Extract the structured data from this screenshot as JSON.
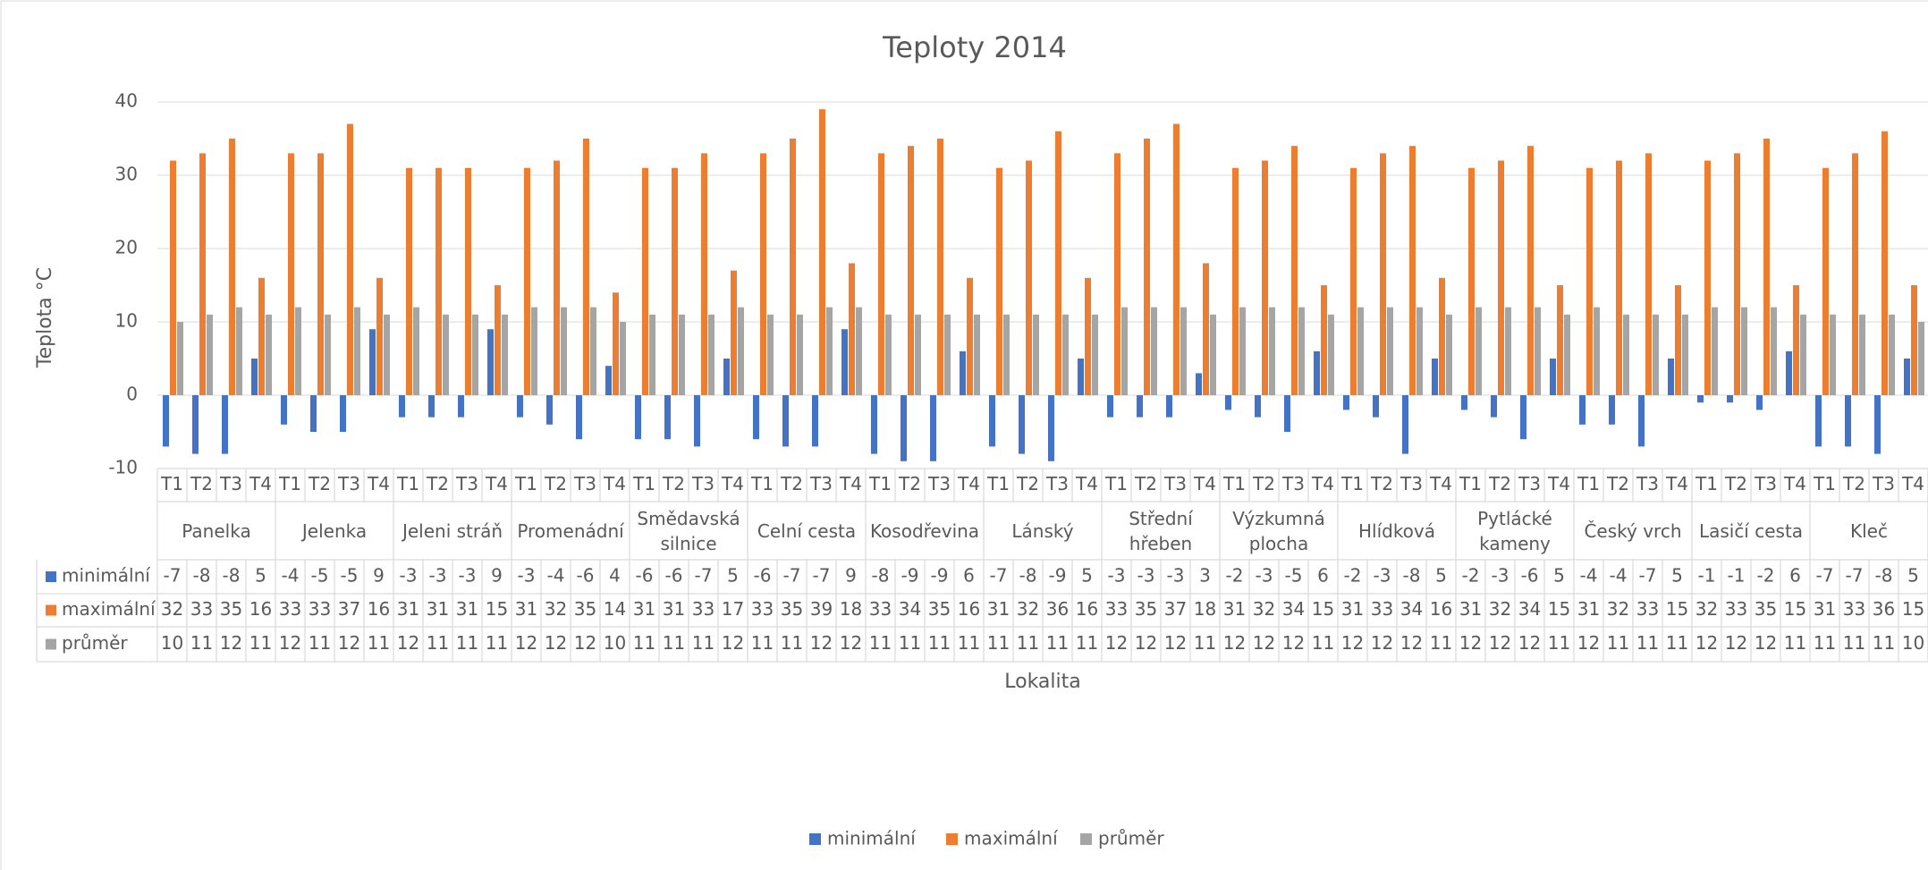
{
  "chart_data": {
    "type": "bar",
    "title": "Teploty 2014",
    "y_label": "Teplota °C",
    "x_label": "Lokalita",
    "groups": [
      "Panelka",
      "Jelenka",
      "Jeleni stráň",
      "Promenádní",
      "Smědavská silnice",
      "Celní cesta",
      "Kosodřevina",
      "Lánský",
      "Střední hřeben",
      "Výzkumná plocha",
      "Hlídková",
      "Pytlácké kameny",
      "Český vrch",
      "Lasičí cesta",
      "Kleč"
    ],
    "categories": [
      "T1",
      "T2",
      "T3",
      "T4",
      "T1",
      "T2",
      "T3",
      "T4",
      "T1",
      "T2",
      "T3",
      "T4",
      "T1",
      "T2",
      "T3",
      "T4",
      "T1",
      "T2",
      "T3",
      "T4",
      "T1",
      "T2",
      "T3",
      "T4",
      "T1",
      "T2",
      "T3",
      "T4",
      "T1",
      "T2",
      "T3",
      "T4",
      "T1",
      "T2",
      "T3",
      "T4",
      "T1",
      "T2",
      "T3",
      "T4",
      "T1",
      "T2",
      "T3",
      "T4",
      "T1",
      "T2",
      "T3",
      "T4",
      "T1",
      "T2",
      "T3",
      "T4",
      "T1",
      "T2",
      "T3",
      "T4",
      "T1",
      "T2",
      "T3",
      "T4"
    ],
    "series": [
      {
        "name": "minimální",
        "color": "#4472c4",
        "values": [
          -7,
          -8,
          -8,
          5,
          -4,
          -5,
          -5,
          9,
          -3,
          -3,
          -3,
          9,
          -3,
          -4,
          -6,
          4,
          -6,
          -6,
          -7,
          5,
          -6,
          -7,
          -7,
          9,
          -8,
          -9,
          -9,
          6,
          -7,
          -8,
          -9,
          5,
          -3,
          -3,
          -3,
          3,
          -2,
          -3,
          -5,
          6,
          -2,
          -3,
          -8,
          5,
          -2,
          -3,
          -6,
          5,
          -4,
          -4,
          -7,
          5,
          -1,
          -1,
          -2,
          6,
          -7,
          -7,
          -8,
          5
        ]
      },
      {
        "name": "maximální",
        "color": "#ed7d31",
        "values": [
          32,
          33,
          35,
          16,
          33,
          33,
          37,
          16,
          31,
          31,
          31,
          15,
          31,
          32,
          35,
          14,
          31,
          31,
          33,
          17,
          33,
          35,
          39,
          18,
          33,
          34,
          35,
          16,
          31,
          32,
          36,
          16,
          33,
          35,
          37,
          18,
          31,
          32,
          34,
          15,
          31,
          33,
          34,
          16,
          31,
          32,
          34,
          15,
          31,
          32,
          33,
          15,
          32,
          33,
          35,
          15,
          31,
          33,
          36,
          15
        ]
      },
      {
        "name": "průměr",
        "color": "#a5a5a5",
        "values": [
          10,
          11,
          12,
          11,
          12,
          11,
          12,
          11,
          12,
          11,
          11,
          11,
          12,
          12,
          12,
          10,
          11,
          11,
          11,
          12,
          11,
          11,
          12,
          12,
          11,
          11,
          11,
          11,
          11,
          11,
          11,
          11,
          12,
          12,
          12,
          11,
          12,
          12,
          12,
          11,
          12,
          12,
          12,
          11,
          12,
          12,
          12,
          11,
          12,
          11,
          11,
          11,
          12,
          12,
          12,
          11,
          11,
          11,
          11,
          10
        ]
      }
    ],
    "ylim": [
      -10,
      40
    ],
    "yticks": [
      -10,
      0,
      10,
      20,
      30,
      40
    ],
    "grid": true,
    "legend": "bottom"
  }
}
